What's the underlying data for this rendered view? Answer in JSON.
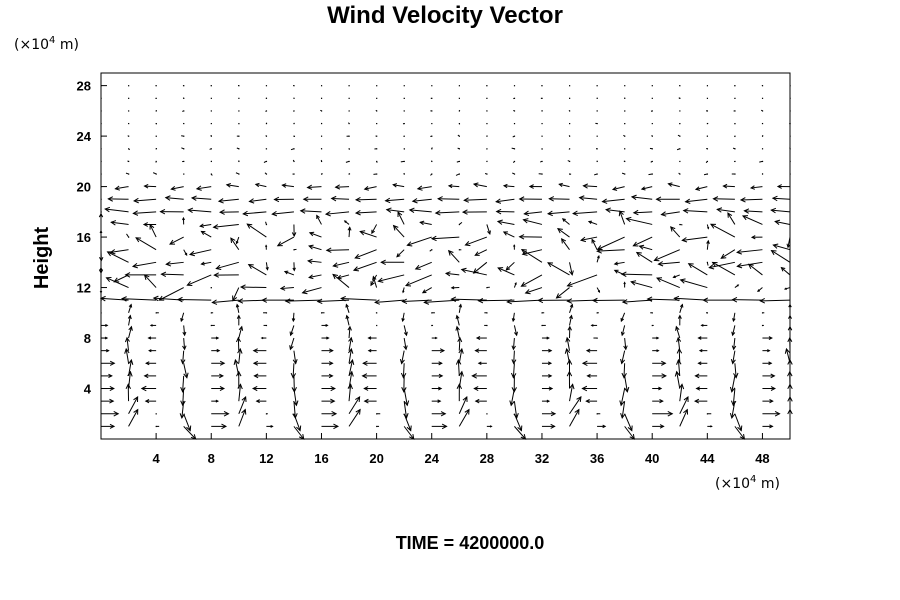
{
  "chart_data": {
    "type": "vector_field",
    "title": "Wind Velocity Vector",
    "ylabel": "Height",
    "x_unit_prefix": "(×10",
    "x_unit_exp": "4",
    "x_unit_suffix": " m)",
    "y_unit_prefix": "(×10",
    "y_unit_exp": "4",
    "y_unit_suffix": " m)",
    "xlim": [
      0,
      50
    ],
    "ylim": [
      0,
      29
    ],
    "xticks": [
      4,
      8,
      12,
      16,
      20,
      24,
      28,
      32,
      36,
      40,
      44,
      48
    ],
    "yticks": [
      4,
      8,
      12,
      16,
      20,
      24,
      28
    ],
    "tick_labels_x": [
      "4",
      "8",
      "12",
      "16",
      "20",
      "24",
      "28",
      "32",
      "36",
      "40",
      "44",
      "48"
    ],
    "tick_labels_y": [
      "4",
      "8",
      "12",
      "16",
      "20",
      "24",
      "28"
    ],
    "grid": "off",
    "vector_grid": {
      "x_start": 0,
      "x_step": 2,
      "x_count": 26,
      "y_start": 1,
      "y_step": 1,
      "y_count": 28
    },
    "layers": [
      {
        "name": "lower-cells",
        "y_range": [
          0,
          10
        ],
        "pattern": "convective rolls, upward/downward alternating",
        "cell_width": 8
      },
      {
        "name": "jet-band-low",
        "y": 11,
        "direction": "westward",
        "magnitude": "strong"
      },
      {
        "name": "turbulent-middle",
        "y_range": [
          12,
          17
        ],
        "pattern": "mixed, large vectors"
      },
      {
        "name": "jet-band-high",
        "y_range": [
          18,
          20
        ],
        "direction": "westward",
        "magnitude": "moderate"
      },
      {
        "name": "upper-calm",
        "y_range": [
          21,
          29
        ],
        "pattern": "very small vectors"
      }
    ]
  },
  "footer": {
    "time_label": "TIME = 4200000.0"
  }
}
